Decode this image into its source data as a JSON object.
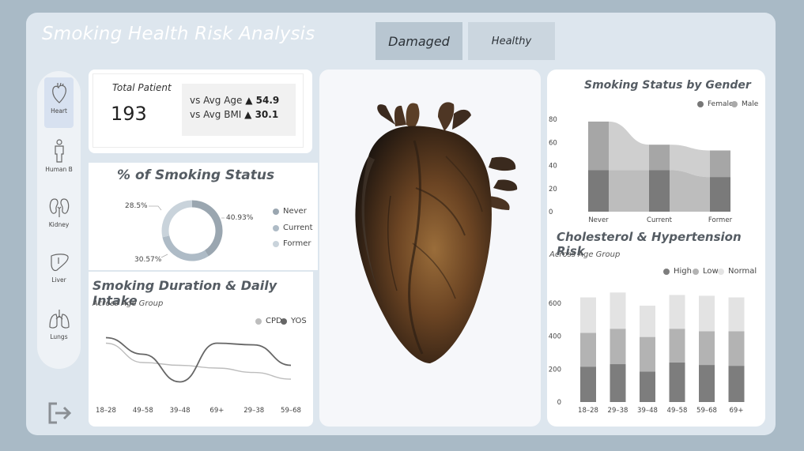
{
  "header": {
    "title": "Smoking Health Risk Analysis"
  },
  "tabs": [
    {
      "label": "Damaged",
      "active": true
    },
    {
      "label": "Healthy",
      "active": false
    }
  ],
  "nav": {
    "items": [
      {
        "label": "Heart",
        "icon": "heart-icon",
        "active": true
      },
      {
        "label": "Human B",
        "icon": "human-body-icon",
        "active": false
      },
      {
        "label": "Kidney",
        "icon": "kidney-icon",
        "active": false
      },
      {
        "label": "Liver",
        "icon": "liver-icon",
        "active": false
      },
      {
        "label": "Lungs",
        "icon": "lungs-icon",
        "active": false
      }
    ],
    "exit_icon": "exit-icon"
  },
  "kpi": {
    "label": "Total Patient",
    "value": "193",
    "age_label": "vs Avg Age",
    "age_value": "▲ 54.9",
    "bmi_label": "vs Avg BMI",
    "bmi_value": "▲ 30.1"
  },
  "colors": {
    "never": "#9aa6b0",
    "current": "#aebbc6",
    "former": "#c9d3db",
    "female": "#777777",
    "male": "#aaaaaa",
    "high": "#7d7d7d",
    "low": "#b3b3b3",
    "normal": "#e3e3e3",
    "cpd": "#bdbdbd",
    "yos": "#666666"
  },
  "heart_image": {
    "icon": "anatomical-heart-image"
  },
  "smoking_status": {
    "title": "% of Smoking Status",
    "legend": [
      "Never",
      "Current",
      "Former"
    ],
    "labels": {
      "never": "40.93%",
      "current": "30.57%",
      "former": "28.5%"
    }
  },
  "duration": {
    "title": "Smoking Duration & Daily Intake",
    "subtitle": "Across Age Group",
    "legend": [
      "CPD",
      "YOS"
    ]
  },
  "gender": {
    "title": "Smoking Status by Gender",
    "legend": [
      "Female",
      "Male"
    ]
  },
  "cholesterol": {
    "title": "Cholesterol & Hypertension Risk",
    "subtitle": "Across Age Group",
    "legend": [
      "High",
      "Low",
      "Normal"
    ]
  },
  "chart_data": [
    {
      "id": "smoking-status-donut",
      "type": "pie",
      "title": "% of Smoking Status",
      "categories": [
        "Never",
        "Current",
        "Former"
      ],
      "values": [
        40.93,
        30.57,
        28.5
      ]
    },
    {
      "id": "smoking-duration",
      "type": "line",
      "title": "Smoking Duration & Daily Intake",
      "subtitle": "Across Age Group",
      "categories": [
        "18–28",
        "49–58",
        "39–48",
        "69+",
        "29–38",
        "59–68"
      ],
      "series": [
        {
          "name": "CPD",
          "values": [
            0.85,
            0.5,
            0.45,
            0.4,
            0.32,
            0.2
          ]
        },
        {
          "name": "YOS",
          "values": [
            0.95,
            0.65,
            0.15,
            0.85,
            0.82,
            0.45
          ]
        }
      ]
    },
    {
      "id": "smoking-by-gender",
      "type": "area",
      "title": "Smoking Status by Gender",
      "categories": [
        "Never",
        "Current",
        "Former"
      ],
      "ylim": [
        0,
        80
      ],
      "yticks": [
        0,
        20,
        40,
        60,
        80
      ],
      "series": [
        {
          "name": "Female",
          "values": [
            36,
            36,
            30
          ]
        },
        {
          "name": "Male",
          "values": [
            42,
            22,
            23
          ]
        }
      ]
    },
    {
      "id": "cholesterol-risk",
      "type": "bar",
      "title": "Cholesterol & Hypertension Risk",
      "subtitle": "Across Age Group",
      "categories": [
        "18–28",
        "29–38",
        "39–48",
        "49–58",
        "59–68",
        "69+"
      ],
      "ylim": [
        0,
        700
      ],
      "yticks": [
        0,
        200,
        400,
        600
      ],
      "series": [
        {
          "name": "High",
          "values": [
            215,
            230,
            185,
            240,
            225,
            220
          ]
        },
        {
          "name": "Low",
          "values": [
            205,
            215,
            210,
            205,
            205,
            210
          ]
        },
        {
          "name": "Normal",
          "values": [
            215,
            220,
            190,
            205,
            215,
            205
          ]
        }
      ]
    }
  ]
}
